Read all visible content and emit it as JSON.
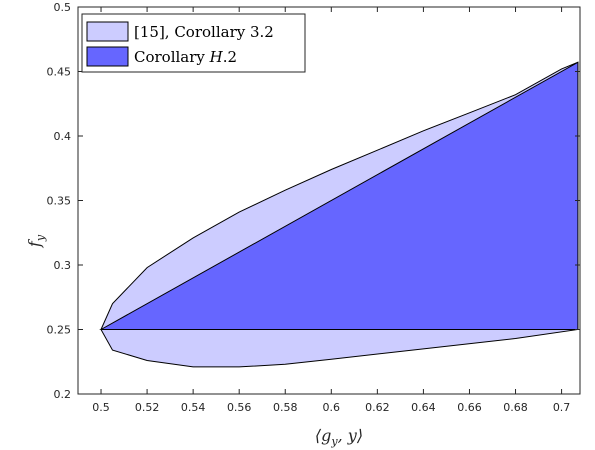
{
  "chart_data": {
    "type": "area",
    "xlabel": "⟨g_y, y⟩",
    "ylabel": "f_y",
    "xlim": [
      0.49,
      0.708
    ],
    "ylim": [
      0.2,
      0.5
    ],
    "xticks": [
      0.5,
      0.52,
      0.54,
      0.56,
      0.58,
      0.6,
      0.62,
      0.64,
      0.66,
      0.68,
      0.7
    ],
    "yticks": [
      0.2,
      0.25,
      0.3,
      0.35,
      0.4,
      0.45,
      0.5
    ],
    "xtick_labels": [
      "0.5",
      "0.52",
      "0.54",
      "0.56",
      "0.58",
      "0.6",
      "0.62",
      "0.64",
      "0.66",
      "0.68",
      "0.7"
    ],
    "ytick_labels": [
      "0.2",
      "0.25",
      "0.3",
      "0.35",
      "0.4",
      "0.45",
      "0.5"
    ],
    "grid": false,
    "legend_position": "top-left",
    "series": [
      {
        "name": "[15], Corollary 3.2",
        "color": "#ccccff",
        "region_x": [
          0.5,
          0.505,
          0.52,
          0.54,
          0.56,
          0.58,
          0.6,
          0.62,
          0.64,
          0.66,
          0.68,
          0.7,
          0.7071,
          0.7071,
          0.68,
          0.64,
          0.6,
          0.58,
          0.56,
          0.54,
          0.52,
          0.505,
          0.5
        ],
        "region_y": [
          0.25,
          0.27,
          0.298,
          0.321,
          0.341,
          0.358,
          0.374,
          0.389,
          0.404,
          0.418,
          0.432,
          0.452,
          0.4571,
          0.25,
          0.243,
          0.235,
          0.227,
          0.223,
          0.221,
          0.221,
          0.226,
          0.234,
          0.25
        ]
      },
      {
        "name": "Corollary H.2",
        "color": "#6666ff",
        "region_x": [
          0.5,
          0.7071,
          0.7071,
          0.5
        ],
        "region_y": [
          0.25,
          0.4571,
          0.25,
          0.25
        ]
      }
    ]
  },
  "legend": {
    "entry1_label": "[15], Corollary 3.2",
    "entry2_prefix": "Corollary ",
    "entry2_math": "H",
    "entry2_suffix": ".2"
  }
}
